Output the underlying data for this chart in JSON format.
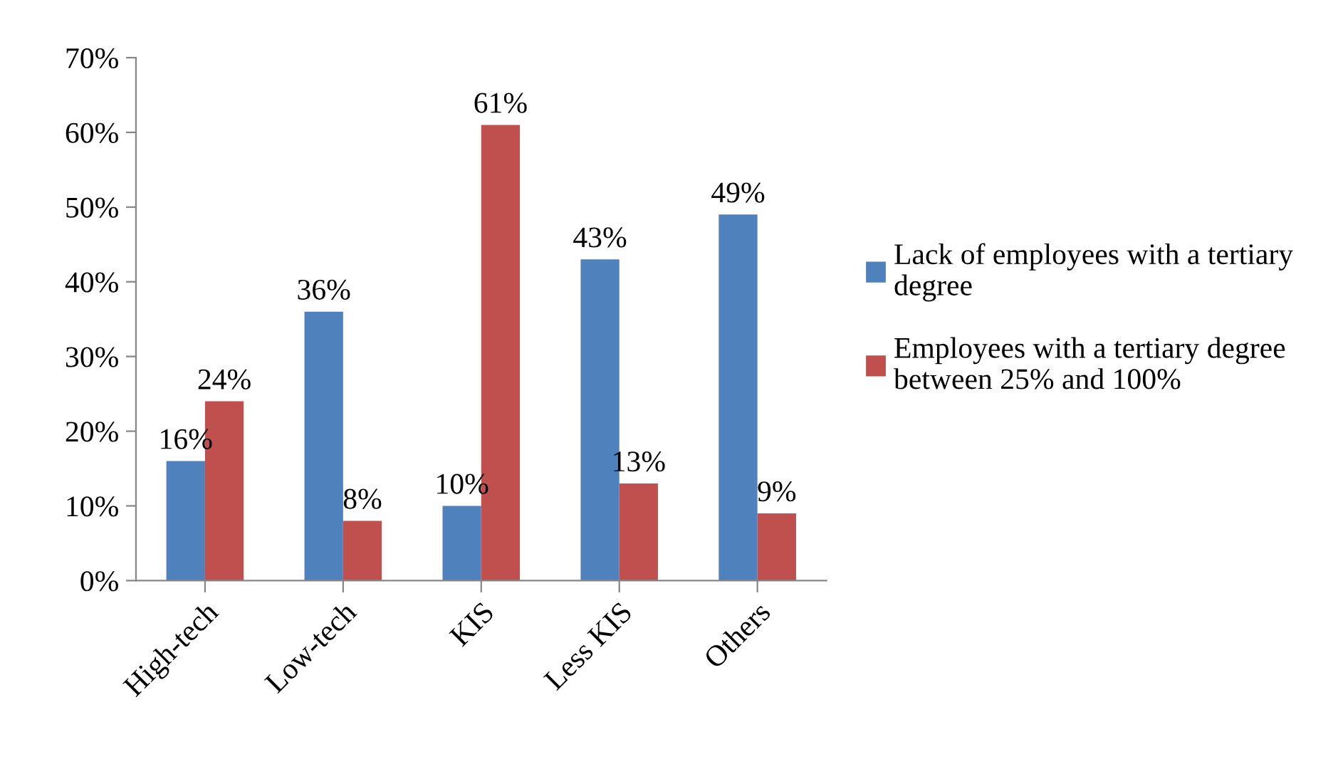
{
  "chart_data": {
    "type": "bar",
    "categories": [
      "High-tech",
      "Low-tech",
      "KIS",
      "Less KIS",
      "Others"
    ],
    "series": [
      {
        "name": "Lack of employees with a tertiary degree",
        "color": "#4f81bd",
        "values": [
          16,
          36,
          10,
          43,
          49
        ],
        "value_labels": [
          "16%",
          "36%",
          "10%",
          "43%",
          "49%"
        ]
      },
      {
        "name": "Employees with a tertiary degree between 25% and 100%",
        "color": "#c0504d",
        "values": [
          24,
          8,
          61,
          13,
          9
        ],
        "value_labels": [
          "24%",
          "8%",
          "61%",
          "13%",
          "9%"
        ]
      }
    ],
    "ylim": [
      0,
      70
    ],
    "yticks": [
      {
        "value": 0,
        "label": "0%"
      },
      {
        "value": 10,
        "label": "10%"
      },
      {
        "value": 20,
        "label": "20%"
      },
      {
        "value": 30,
        "label": "30%"
      },
      {
        "value": 40,
        "label": "40%"
      },
      {
        "value": 50,
        "label": "50%"
      },
      {
        "value": 60,
        "label": "60%"
      },
      {
        "value": 70,
        "label": "70%"
      }
    ],
    "grid": false,
    "legend": "right"
  }
}
